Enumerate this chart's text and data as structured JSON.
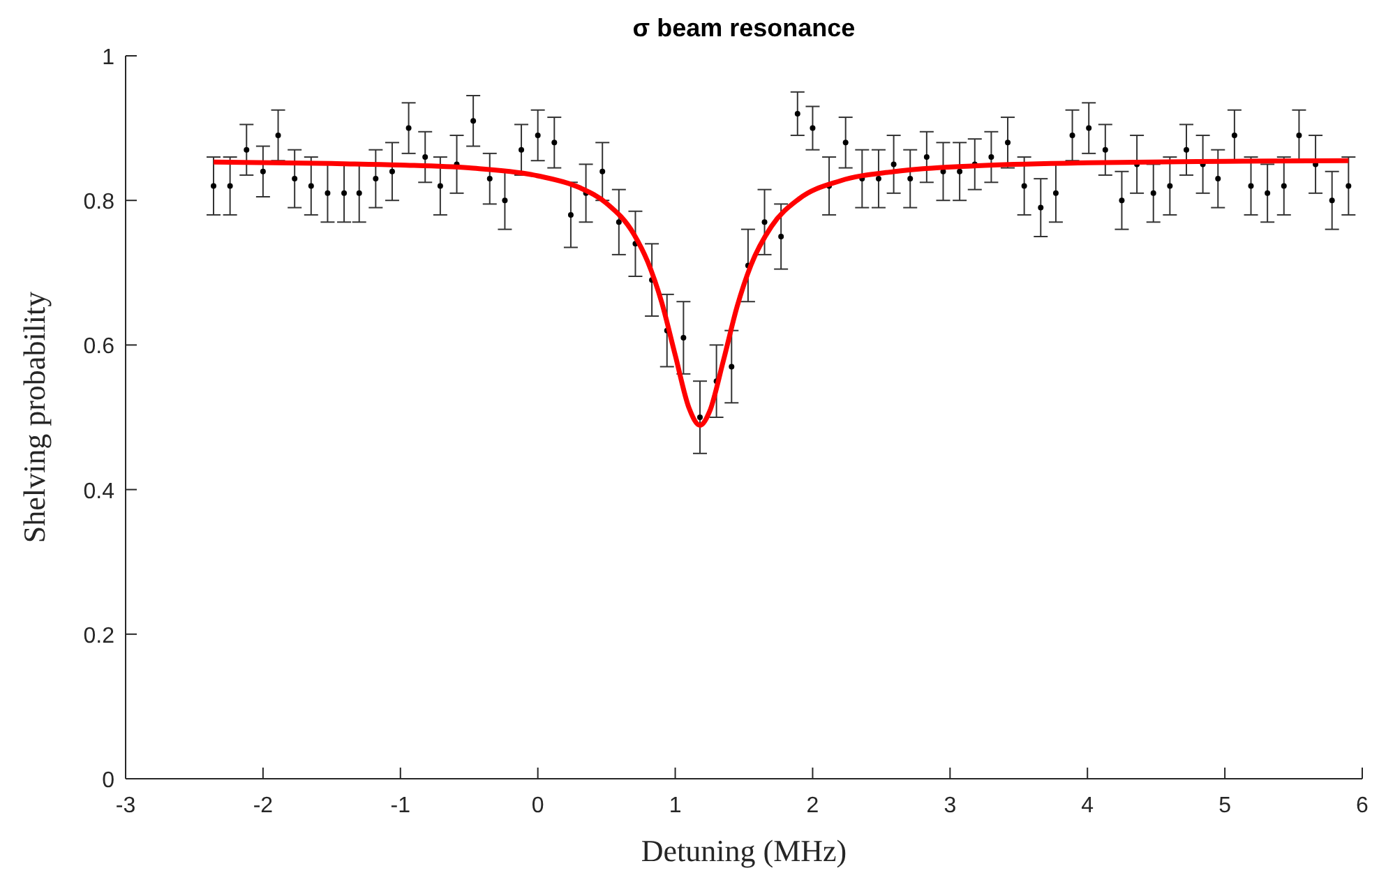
{
  "chart_data": {
    "type": "scatter",
    "title": "σ beam resonance",
    "xlabel": "Detuning (MHz)",
    "ylabel": "Shelving probability",
    "xlim": [
      -3,
      6
    ],
    "ylim": [
      0,
      1
    ],
    "xticks": [
      -3,
      -2,
      -1,
      0,
      1,
      2,
      3,
      4,
      5,
      6
    ],
    "yticks": [
      0,
      {
        "value": 0.2,
        "label": "0.2"
      },
      {
        "value": 0.4,
        "label": "0.4"
      },
      {
        "value": 0.6,
        "label": "0.6"
      },
      {
        "value": 0.8,
        "label": "0.8"
      },
      1
    ],
    "grid": false,
    "series": [
      {
        "type": "scatter",
        "marker": "circle",
        "color": "#000000",
        "x": [
          -2.36,
          -2.24,
          -2.12,
          -2.0,
          -1.89,
          -1.77,
          -1.65,
          -1.53,
          -1.41,
          -1.3,
          -1.18,
          -1.06,
          -0.94,
          -0.82,
          -0.71,
          -0.59,
          -0.47,
          -0.35,
          -0.24,
          -0.12,
          0.0,
          0.12,
          0.24,
          0.35,
          0.47,
          0.59,
          0.71,
          0.83,
          0.94,
          1.06,
          1.18,
          1.3,
          1.41,
          1.53,
          1.65,
          1.77,
          1.89,
          2.0,
          2.12,
          2.24,
          2.36,
          2.48,
          2.59,
          2.71,
          2.83,
          2.95,
          3.07,
          3.18,
          3.3,
          3.42,
          3.54,
          3.66,
          3.77,
          3.89,
          4.01,
          4.13,
          4.25,
          4.36,
          4.48,
          4.6,
          4.72,
          4.84,
          4.95,
          5.07,
          5.19,
          5.31,
          5.43,
          5.54,
          5.66,
          5.78,
          5.9
        ],
        "values": [
          0.82,
          0.82,
          0.87,
          0.84,
          0.89,
          0.83,
          0.82,
          0.81,
          0.81,
          0.81,
          0.83,
          0.84,
          0.9,
          0.86,
          0.82,
          0.85,
          0.91,
          0.83,
          0.8,
          0.87,
          0.89,
          0.88,
          0.78,
          0.81,
          0.84,
          0.77,
          0.74,
          0.69,
          0.62,
          0.61,
          0.5,
          0.55,
          0.57,
          0.71,
          0.77,
          0.75,
          0.92,
          0.9,
          0.82,
          0.88,
          0.83,
          0.83,
          0.85,
          0.83,
          0.86,
          0.84,
          0.84,
          0.85,
          0.86,
          0.88,
          0.82,
          0.79,
          0.81,
          0.89,
          0.9,
          0.87,
          0.8,
          0.85,
          0.81,
          0.82,
          0.87,
          0.85,
          0.83,
          0.89,
          0.82,
          0.81,
          0.82,
          0.89,
          0.85,
          0.8,
          0.82
        ],
        "errors": [
          0.04,
          0.04,
          0.035,
          0.035,
          0.035,
          0.04,
          0.04,
          0.04,
          0.04,
          0.04,
          0.04,
          0.04,
          0.035,
          0.035,
          0.04,
          0.04,
          0.035,
          0.035,
          0.04,
          0.035,
          0.035,
          0.035,
          0.045,
          0.04,
          0.04,
          0.045,
          0.045,
          0.05,
          0.05,
          0.05,
          0.05,
          0.05,
          0.05,
          0.05,
          0.045,
          0.045,
          0.03,
          0.03,
          0.04,
          0.035,
          0.04,
          0.04,
          0.04,
          0.04,
          0.035,
          0.04,
          0.04,
          0.035,
          0.035,
          0.035,
          0.04,
          0.04,
          0.04,
          0.035,
          0.035,
          0.035,
          0.04,
          0.04,
          0.04,
          0.04,
          0.035,
          0.04,
          0.04,
          0.035,
          0.04,
          0.04,
          0.04,
          0.035,
          0.04,
          0.04,
          0.04
        ]
      },
      {
        "type": "line",
        "color": "#ff0000",
        "line_style": "solid",
        "x": [
          -2.36,
          -1.5,
          -1,
          -0.5,
          0,
          0.3,
          0.5,
          0.7,
          0.8,
          0.9,
          1.0,
          1.1,
          1.18,
          1.25,
          1.35,
          1.45,
          1.55,
          1.7,
          1.9,
          2.2,
          2.6,
          3.2,
          4,
          5,
          5.9
        ],
        "values": [
          0.853,
          0.851,
          0.849,
          0.845,
          0.834,
          0.818,
          0.796,
          0.753,
          0.715,
          0.66,
          0.586,
          0.513,
          0.489,
          0.508,
          0.578,
          0.653,
          0.71,
          0.764,
          0.802,
          0.827,
          0.84,
          0.848,
          0.852,
          0.854,
          0.855
        ]
      }
    ]
  }
}
